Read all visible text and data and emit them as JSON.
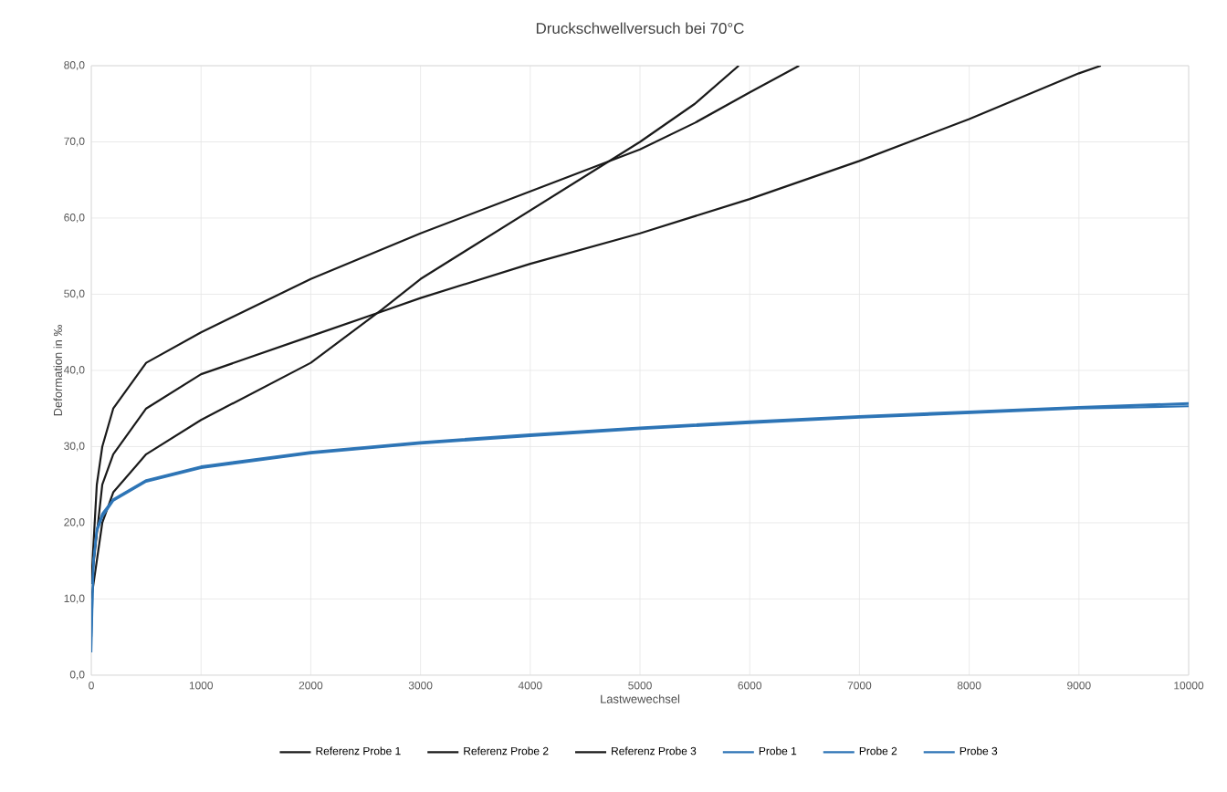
{
  "chart_data": {
    "type": "line",
    "title": "Druckschwellversuch bei 70°C",
    "xlabel": "Lastwewechsel",
    "ylabel": "Deformation in ‰",
    "xlim": [
      0,
      10000
    ],
    "xticks": [
      0,
      1000,
      2000,
      3000,
      4000,
      5000,
      6000,
      7000,
      8000,
      9000,
      10000
    ],
    "ylim": [
      0,
      80
    ],
    "yticks": [
      {
        "value": 0,
        "label": "0,0"
      },
      {
        "value": 10,
        "label": "10,0"
      },
      {
        "value": 20,
        "label": "20,0"
      },
      {
        "value": 30,
        "label": "30,0"
      },
      {
        "value": 40,
        "label": "40,0"
      },
      {
        "value": 50,
        "label": "50,0"
      },
      {
        "value": 60,
        "label": "60,0"
      },
      {
        "value": 70,
        "label": "70,0"
      },
      {
        "value": 80,
        "label": "80,0"
      }
    ],
    "grid": true,
    "legend": "bottom",
    "marker": "none",
    "line_style": "solid",
    "series": [
      {
        "name": "Referenz Probe 1",
        "color": "#1a1a1a",
        "x": [
          0,
          50,
          100,
          200,
          500,
          1000,
          2000,
          3000,
          4000,
          5000,
          5500,
          6000,
          6450
        ],
        "values": [
          12,
          25,
          30,
          35,
          41,
          45,
          52,
          58,
          63.5,
          69,
          72.5,
          76.5,
          80
        ]
      },
      {
        "name": "Referenz Probe 2",
        "color": "#1a1a1a",
        "x": [
          0,
          100,
          200,
          500,
          1000,
          2000,
          2700,
          3000,
          4000,
          5000,
          6000,
          7000,
          8000,
          9000,
          9200
        ],
        "values": [
          12,
          25,
          29,
          35,
          39.5,
          44.5,
          48,
          49.5,
          54,
          58,
          62.5,
          67.5,
          73,
          79,
          80
        ]
      },
      {
        "name": "Referenz Probe 3",
        "color": "#1a1a1a",
        "x": [
          0,
          100,
          200,
          500,
          1000,
          2000,
          2650,
          3000,
          4000,
          5000,
          5500,
          5900
        ],
        "values": [
          10,
          20,
          24,
          29,
          33.5,
          41,
          48,
          52,
          61,
          70,
          75,
          80
        ]
      },
      {
        "name": "Probe 1",
        "color": "#2e75b6",
        "x": [
          0,
          20,
          50,
          100,
          200,
          500,
          1000,
          2000,
          3000,
          4000,
          5000,
          6000,
          7000,
          8000,
          9000,
          10000
        ],
        "values": [
          3,
          15,
          19,
          21,
          23,
          25.5,
          27.3,
          29.2,
          30.5,
          31.5,
          32.4,
          33.2,
          33.9,
          34.5,
          35.1,
          35.6
        ]
      },
      {
        "name": "Probe 2",
        "color": "#2e75b6",
        "x": [
          10,
          20,
          50,
          100,
          200,
          500,
          1000,
          2000,
          3000,
          4000,
          5000,
          6000,
          7000,
          8000,
          9000,
          10000
        ],
        "values": [
          12,
          15,
          19.2,
          21.2,
          23.1,
          25.6,
          27.4,
          29.3,
          30.6,
          31.6,
          32.5,
          33.3,
          34,
          34.6,
          35.2,
          35.7
        ]
      },
      {
        "name": "Probe 3",
        "color": "#2e75b6",
        "x": [
          0,
          20,
          50,
          100,
          200,
          500,
          1000,
          2000,
          3000,
          4000,
          5000,
          6000,
          7000,
          8000,
          9000,
          10000
        ],
        "values": [
          5,
          14.8,
          18.8,
          20.8,
          22.9,
          25.4,
          27.2,
          29.1,
          30.4,
          31.4,
          32.3,
          33.1,
          33.8,
          34.4,
          35,
          35.3
        ]
      }
    ]
  }
}
